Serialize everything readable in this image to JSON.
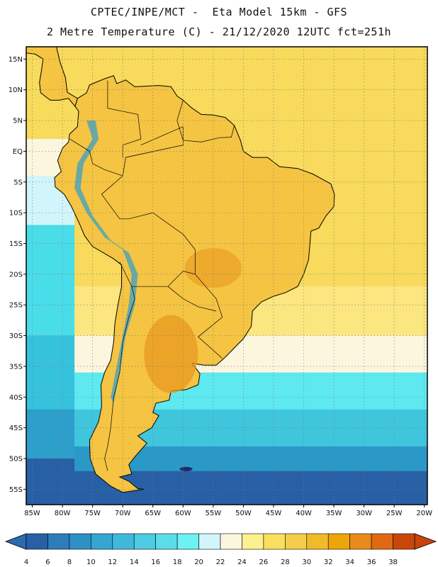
{
  "header": {
    "line1": "CPTEC/INPE/MCT -  Eta Model 15km - GFS",
    "line2": "2 Metre Temperature (C) - 21/12/2020 12UTC fct=251h"
  },
  "map": {
    "lon_range": [
      -86,
      -19.5
    ],
    "lat_range": [
      -57.5,
      17
    ],
    "lat_ticks": [
      {
        "value": 15,
        "label": "15N"
      },
      {
        "value": 10,
        "label": "10N"
      },
      {
        "value": 5,
        "label": "5N"
      },
      {
        "value": 0,
        "label": "EQ"
      },
      {
        "value": -5,
        "label": "5S"
      },
      {
        "value": -10,
        "label": "10S"
      },
      {
        "value": -15,
        "label": "15S"
      },
      {
        "value": -20,
        "label": "20S"
      },
      {
        "value": -25,
        "label": "25S"
      },
      {
        "value": -30,
        "label": "30S"
      },
      {
        "value": -35,
        "label": "35S"
      },
      {
        "value": -40,
        "label": "40S"
      },
      {
        "value": -45,
        "label": "45S"
      },
      {
        "value": -50,
        "label": "50S"
      },
      {
        "value": -55,
        "label": "55S"
      }
    ],
    "lon_ticks": [
      {
        "value": -85,
        "label": "85W"
      },
      {
        "value": -80,
        "label": "80W"
      },
      {
        "value": -75,
        "label": "75W"
      },
      {
        "value": -70,
        "label": "70W"
      },
      {
        "value": -65,
        "label": "65W"
      },
      {
        "value": -60,
        "label": "60W"
      },
      {
        "value": -55,
        "label": "55W"
      },
      {
        "value": -50,
        "label": "50W"
      },
      {
        "value": -45,
        "label": "45W"
      },
      {
        "value": -40,
        "label": "40W"
      },
      {
        "value": -35,
        "label": "35W"
      },
      {
        "value": -30,
        "label": "30W"
      },
      {
        "value": -25,
        "label": "25W"
      },
      {
        "value": -20,
        "label": "20W"
      }
    ],
    "ocean_bands": [
      {
        "lat_top": 17,
        "lat_bottom": -22,
        "color": "#f8da5c"
      },
      {
        "lat_top": -22,
        "lat_bottom": -30,
        "color": "#fbe680"
      },
      {
        "lat_top": -30,
        "lat_bottom": -36,
        "color": "#fdf6df"
      },
      {
        "lat_top": -36,
        "lat_bottom": -42,
        "color": "#5ee8ef"
      },
      {
        "lat_top": -42,
        "lat_bottom": -48,
        "color": "#3fc6dd"
      },
      {
        "lat_top": -48,
        "lat_bottom": -52,
        "color": "#2a99c8"
      },
      {
        "lat_top": -52,
        "lat_bottom": -57.5,
        "color": "#2760a4"
      }
    ],
    "pacific_bands": [
      {
        "lat_top": 17,
        "lat_bottom": 2,
        "color": "#f8da5c"
      },
      {
        "lat_top": 2,
        "lat_bottom": -4,
        "color": "#fdf6df"
      },
      {
        "lat_top": -4,
        "lat_bottom": -12,
        "color": "#d2f5fb"
      },
      {
        "lat_top": -12,
        "lat_bottom": -30,
        "color": "#49dde9"
      },
      {
        "lat_top": -30,
        "lat_bottom": -42,
        "color": "#36c2dc"
      },
      {
        "lat_top": -42,
        "lat_bottom": -50,
        "color": "#2d9fcb"
      },
      {
        "lat_top": -50,
        "lat_bottom": -57.5,
        "color": "#2760a4"
      }
    ],
    "land_color": "#f4c442",
    "hot_color": "#e89a20",
    "cold_color": "#3aa0c8",
    "coast_color": "#000000",
    "grid_color": "#7a7a7a"
  },
  "colorbar": {
    "labels": [
      "4",
      "6",
      "8",
      "10",
      "12",
      "14",
      "16",
      "18",
      "20",
      "22",
      "24",
      "26",
      "28",
      "30",
      "32",
      "34",
      "36",
      "38"
    ],
    "colors": [
      "#2760a4",
      "#2d7dbb",
      "#2f90c6",
      "#35a6d2",
      "#40b8db",
      "#4ccbe2",
      "#5adde9",
      "#6cf2f4",
      "#d2f5fb",
      "#fdf6df",
      "#fdf08e",
      "#f9df5e",
      "#f4ce4a",
      "#f0ba2b",
      "#eda50a",
      "#e88b1a",
      "#df6a11",
      "#c9460a"
    ],
    "arrow_left_color": "#2a6aad",
    "arrow_right_color": "#c7450c"
  }
}
